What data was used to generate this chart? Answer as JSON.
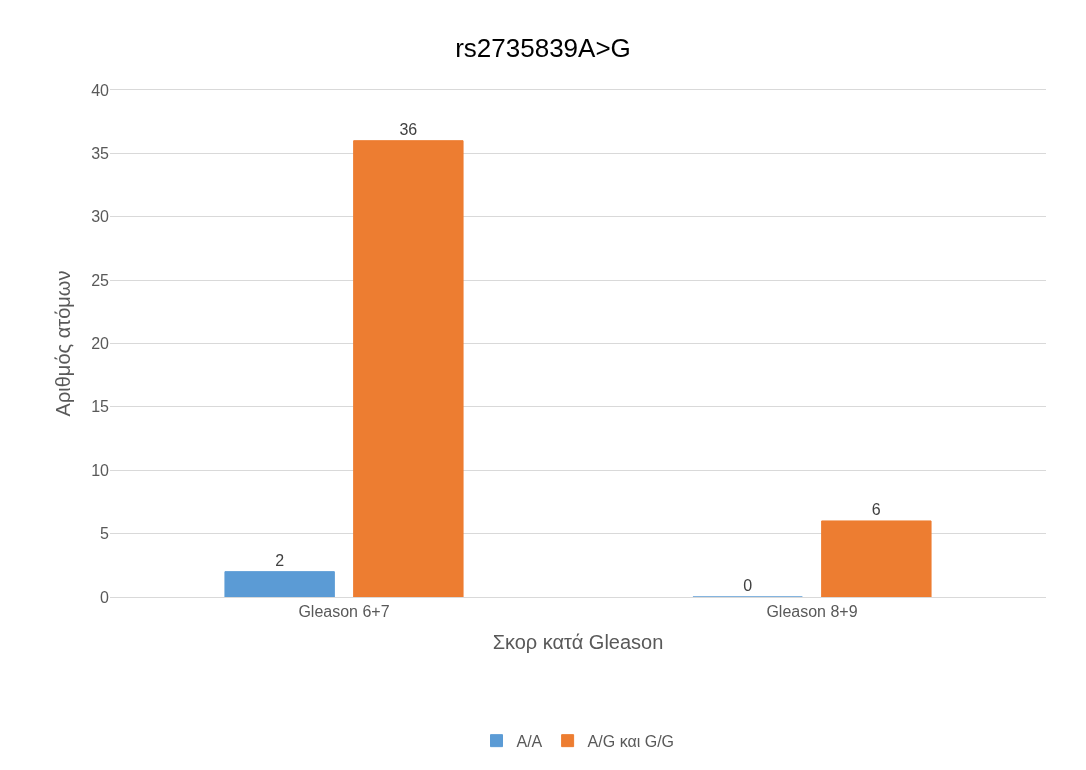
{
  "chart_data": {
    "type": "bar",
    "title": "rs2735839A>G",
    "xlabel": "Σκορ κατά Gleason",
    "ylabel": "Αριθμός ατόμων",
    "categories": [
      "Gleason 6+7",
      "Gleason 8+9"
    ],
    "series": [
      {
        "name": "A/A",
        "color": "#5b9bd5",
        "values": [
          2,
          0
        ]
      },
      {
        "name": "A/G και G/G",
        "color": "#ed7d31",
        "values": [
          36,
          6
        ]
      }
    ],
    "ylim": [
      0,
      40
    ],
    "yticks": [
      0,
      5,
      10,
      15,
      20,
      25,
      30,
      35,
      40
    ],
    "grid": "y",
    "legend": "bottom",
    "data_labels": true
  }
}
